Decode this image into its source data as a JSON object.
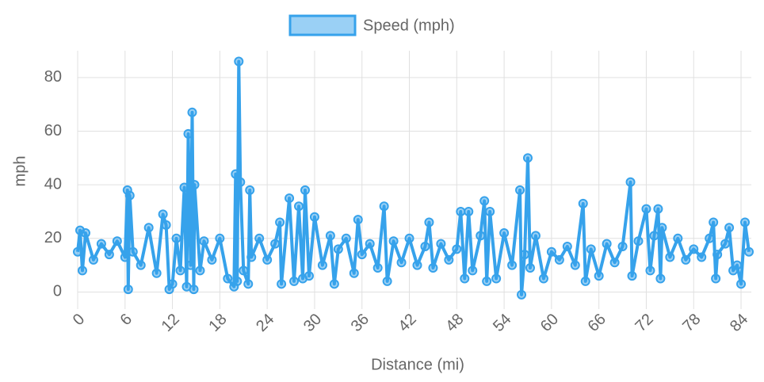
{
  "chart_data": {
    "type": "line",
    "legend_label": "Speed (mph)",
    "y_label": "mph",
    "x_label": "Distance (mi)",
    "series": [
      {
        "name": "Speed (mph)",
        "color": "#36a2eb",
        "x": [
          0,
          0.3,
          0.6,
          1,
          2,
          3,
          4,
          5,
          6,
          6.3,
          6.4,
          6.6,
          7,
          8,
          9,
          10,
          10.8,
          11.2,
          11.6,
          12,
          12.5,
          13,
          13.5,
          13.8,
          14,
          14.3,
          14.5,
          14.7,
          14.8,
          15.5,
          16,
          17,
          18,
          19,
          19.8,
          20,
          20.2,
          20.4,
          20.6,
          21,
          21.6,
          21.8,
          22,
          23,
          24,
          25,
          25.6,
          25.8,
          26.8,
          27.4,
          28,
          28.5,
          28.8,
          29.3,
          30,
          31,
          32,
          32.5,
          33,
          34,
          35,
          35.5,
          36,
          37,
          38,
          38.8,
          39.2,
          40,
          41,
          42,
          43,
          44,
          44.5,
          45,
          46,
          47,
          48,
          48.5,
          49,
          49.5,
          50,
          51,
          51.5,
          51.8,
          52.2,
          53,
          54,
          55,
          56,
          56.2,
          56.6,
          57,
          57.3,
          58,
          59,
          60,
          61,
          62,
          63,
          64,
          64.3,
          65,
          66,
          67,
          68,
          69,
          70,
          70.2,
          71,
          72,
          72.5,
          73,
          73.5,
          73.8,
          74,
          75,
          76,
          77,
          78,
          79,
          80,
          80.5,
          80.8,
          81,
          82,
          82.5,
          83,
          83.5,
          84,
          84.5,
          85
        ],
        "values": [
          15,
          23,
          8,
          22,
          12,
          18,
          14,
          19,
          13,
          38,
          1,
          36,
          15,
          10,
          24,
          7,
          29,
          25,
          1,
          3,
          20,
          8,
          39,
          2,
          59,
          10,
          67,
          1,
          40,
          8,
          19,
          12,
          20,
          5,
          2,
          44,
          4,
          86,
          41,
          8,
          3,
          38,
          13,
          20,
          12,
          18,
          26,
          3,
          35,
          4,
          32,
          5,
          38,
          6,
          28,
          10,
          21,
          3,
          16,
          20,
          7,
          27,
          14,
          18,
          9,
          32,
          4,
          19,
          11,
          20,
          10,
          17,
          26,
          9,
          18,
          12,
          16,
          30,
          5,
          30,
          8,
          21,
          34,
          4,
          30,
          5,
          22,
          10,
          38,
          -1,
          14,
          50,
          9,
          21,
          5,
          15,
          12,
          17,
          10,
          33,
          4,
          16,
          6,
          18,
          11,
          17,
          41,
          6,
          19,
          31,
          8,
          21,
          31,
          5,
          24,
          13,
          20,
          12,
          16,
          13,
          20,
          26,
          5,
          14,
          18,
          24,
          8,
          10,
          3,
          26,
          15
        ]
      }
    ],
    "xlim": [
      0,
      85.3
    ],
    "xticks": [
      0,
      6,
      12,
      18,
      24,
      30,
      36,
      42,
      48,
      54,
      60,
      66,
      72,
      78,
      84
    ],
    "ylim": [
      -4,
      90
    ],
    "yticks": [
      0,
      20,
      40,
      60,
      80
    ],
    "grid": true
  }
}
